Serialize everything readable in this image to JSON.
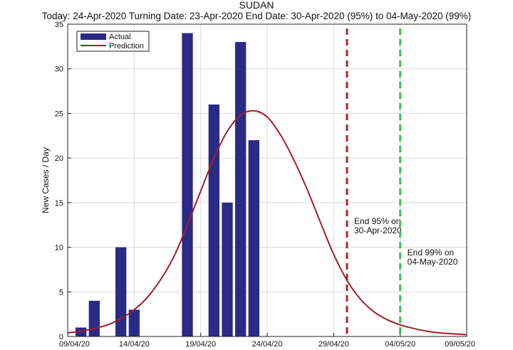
{
  "chart_data": {
    "type": "bar",
    "title": "SUDAN",
    "subtitle": "Today: 24-Apr-2020   Turning Date: 23-Apr-2020   End Date: 30-Apr-2020 (95%) to 04-May-2020 (99%)",
    "ylabel": "New Cases / Day",
    "xlabel": "",
    "ylim": [
      0,
      35
    ],
    "yticks": [
      0,
      5,
      10,
      15,
      20,
      25,
      30,
      35
    ],
    "xlim": [
      "09/04/20",
      "09/05/20"
    ],
    "xticks": [
      "09/04/20",
      "14/04/20",
      "19/04/20",
      "24/04/20",
      "29/04/20",
      "04/05/20",
      "09/05/20"
    ],
    "grid": true,
    "legend": {
      "placement": "top-left",
      "entries": [
        "Actual",
        "Prediction"
      ]
    },
    "series": [
      {
        "name": "Actual",
        "type": "bar",
        "color": "#2b2a85",
        "x": [
          "10/04/20",
          "11/04/20",
          "13/04/20",
          "14/04/20",
          "18/04/20",
          "20/04/20",
          "21/04/20",
          "22/04/20",
          "23/04/20"
        ],
        "values": [
          1,
          4,
          10,
          3,
          34,
          26,
          15,
          33,
          22
        ]
      },
      {
        "name": "Prediction",
        "type": "line",
        "color": "#a0202a",
        "x": [
          "09/04/20",
          "10/04/20",
          "11/04/20",
          "12/04/20",
          "13/04/20",
          "14/04/20",
          "15/04/20",
          "16/04/20",
          "17/04/20",
          "18/04/20",
          "19/04/20",
          "20/04/20",
          "21/04/20",
          "22/04/20",
          "23/04/20",
          "24/04/20",
          "25/04/20",
          "26/04/20",
          "27/04/20",
          "28/04/20",
          "29/04/20",
          "30/04/20",
          "01/05/20",
          "02/05/20",
          "03/05/20",
          "04/05/20",
          "05/05/20",
          "06/05/20",
          "07/05/20",
          "08/05/20",
          "09/05/20"
        ],
        "values": [
          0.4,
          0.6,
          0.9,
          1.3,
          2.0,
          3.0,
          4.4,
          6.4,
          9.0,
          12.5,
          16.3,
          20.0,
          23.0,
          24.8,
          25.3,
          24.6,
          22.6,
          19.8,
          16.5,
          12.8,
          9.2,
          6.3,
          4.2,
          2.8,
          1.9,
          1.3,
          0.9,
          0.6,
          0.4,
          0.3,
          0.2
        ]
      }
    ],
    "annotations": [
      {
        "kind": "vline",
        "x": "30/04/20",
        "style": "dashed",
        "color": "#a0282a",
        "label_lines": [
          "End 95% on",
          "30-Apr-2020"
        ]
      },
      {
        "kind": "vline",
        "x": "04/05/20",
        "style": "dashed",
        "color": "#2ecc40",
        "label_lines": [
          "End 99% on",
          "04-May-2020"
        ]
      }
    ]
  }
}
